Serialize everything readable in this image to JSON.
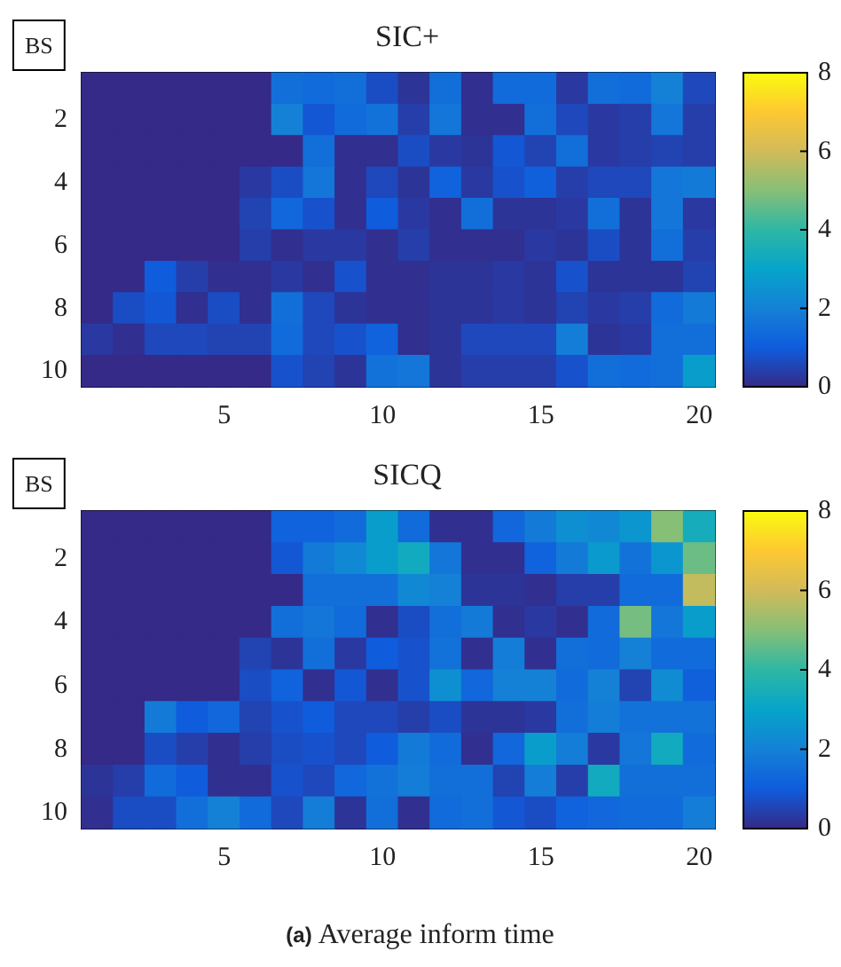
{
  "chart_data": [
    {
      "type": "heatmap",
      "title": "SIC+",
      "annotations": [
        "BS"
      ],
      "categories": [
        null,
        null,
        null,
        null,
        "5",
        null,
        null,
        null,
        null,
        "10",
        null,
        null,
        null,
        null,
        "15",
        null,
        null,
        null,
        null,
        "20"
      ],
      "y_categories": [
        null,
        "2",
        null,
        "4",
        null,
        "6",
        null,
        "8",
        null,
        "10"
      ],
      "clim": [
        0,
        8
      ],
      "cticks": [
        0,
        2,
        4,
        6,
        8
      ],
      "cells": [
        [
          0,
          0,
          0,
          0,
          0,
          0,
          1.5,
          1.4,
          1.5,
          0.7,
          0.2,
          1.5,
          0.1,
          1.4,
          1.4,
          0.3,
          1.5,
          1.4,
          2.0,
          0.6
        ],
        [
          0,
          0,
          0,
          0,
          0,
          0,
          2.0,
          0.9,
          1.4,
          1.6,
          0.4,
          1.7,
          0.1,
          0.1,
          1.5,
          0.6,
          0.3,
          0.4,
          1.7,
          0.4
        ],
        [
          0,
          0,
          0,
          0,
          0,
          0,
          0,
          1.5,
          0.1,
          0.1,
          0.7,
          0.3,
          0.2,
          0.9,
          0.5,
          1.5,
          0.3,
          0.4,
          0.5,
          0.4
        ],
        [
          0,
          0,
          0,
          0,
          0,
          0.3,
          0.7,
          1.7,
          0.1,
          0.6,
          0.2,
          1.2,
          0.3,
          0.8,
          1.1,
          0.4,
          0.6,
          0.6,
          1.7,
          1.8
        ],
        [
          0,
          0,
          0,
          0,
          0,
          0.5,
          1.3,
          0.8,
          0.1,
          1.0,
          0.3,
          0.1,
          1.5,
          0.2,
          0.2,
          0.3,
          1.5,
          0.2,
          1.7,
          0.3
        ],
        [
          0,
          0,
          0,
          0,
          0,
          0.4,
          0.1,
          0.3,
          0.3,
          0.1,
          0.4,
          0.1,
          0.1,
          0.1,
          0.3,
          0.2,
          0.7,
          0.2,
          1.5,
          0.4
        ],
        [
          0,
          0,
          1.0,
          0.4,
          0.1,
          0.1,
          0.3,
          0.1,
          0.8,
          0.1,
          0.1,
          0.2,
          0.2,
          0.3,
          0.2,
          0.8,
          0.2,
          0.2,
          0.2,
          0.5
        ],
        [
          0,
          0.7,
          0.9,
          0.1,
          0.7,
          0.1,
          1.5,
          0.6,
          0.2,
          0.1,
          0.1,
          0.2,
          0.2,
          0.3,
          0.2,
          0.5,
          0.3,
          0.4,
          1.4,
          1.8
        ],
        [
          0.3,
          0.1,
          0.6,
          0.6,
          0.5,
          0.5,
          1.4,
          0.6,
          0.8,
          1.2,
          0.1,
          0.2,
          0.6,
          0.6,
          0.6,
          1.9,
          0.2,
          0.3,
          1.5,
          1.5
        ],
        [
          0,
          0,
          0,
          0,
          0,
          0,
          0.8,
          0.5,
          0.2,
          1.6,
          1.7,
          0.2,
          0.4,
          0.4,
          0.4,
          0.8,
          1.5,
          1.4,
          1.5,
          2.8
        ]
      ]
    },
    {
      "type": "heatmap",
      "title": "SICQ",
      "annotations": [
        "BS",
        "(a) Average inform time"
      ],
      "categories": [
        null,
        null,
        null,
        null,
        "5",
        null,
        null,
        null,
        null,
        "10",
        null,
        null,
        null,
        null,
        "15",
        null,
        null,
        null,
        null,
        "20"
      ],
      "y_categories": [
        null,
        "2",
        null,
        "4",
        null,
        "6",
        null,
        "8",
        null,
        "10"
      ],
      "clim": [
        0,
        8
      ],
      "cticks": [
        0,
        2,
        4,
        6,
        8
      ],
      "cells": [
        [
          0,
          0,
          0,
          0,
          0,
          0,
          1.2,
          1.2,
          1.4,
          2.8,
          1.4,
          0.1,
          0.1,
          1.3,
          1.8,
          2.4,
          2.2,
          2.6,
          5.0,
          3.4
        ],
        [
          0,
          0,
          0,
          0,
          0,
          0,
          0.9,
          1.8,
          2.2,
          2.8,
          3.3,
          1.7,
          0.1,
          0.1,
          1.2,
          1.8,
          2.7,
          1.6,
          2.6,
          4.7
        ],
        [
          0,
          0,
          0,
          0,
          0,
          0,
          0,
          1.5,
          1.5,
          1.5,
          2.2,
          2.0,
          0.2,
          0.2,
          0.1,
          0.4,
          0.4,
          1.4,
          1.4,
          5.8
        ],
        [
          0,
          0,
          0,
          0,
          0,
          0,
          1.5,
          1.7,
          1.4,
          0.1,
          0.7,
          1.5,
          1.8,
          0.1,
          0.3,
          0.1,
          1.4,
          4.8,
          1.7,
          2.8
        ],
        [
          0,
          0,
          0,
          0,
          0,
          0.5,
          0.2,
          1.5,
          0.3,
          1.0,
          0.8,
          1.6,
          0.1,
          1.9,
          0.1,
          1.5,
          1.4,
          2.0,
          1.4,
          1.4
        ],
        [
          0,
          0,
          0,
          0,
          0,
          0.7,
          1.2,
          0.1,
          0.9,
          0.1,
          0.8,
          2.4,
          1.3,
          2.0,
          2.0,
          1.4,
          2.0,
          0.5,
          2.3,
          1.1
        ],
        [
          0,
          0,
          1.8,
          1.0,
          1.3,
          0.5,
          0.8,
          1.0,
          0.6,
          0.6,
          0.4,
          0.7,
          0.2,
          0.2,
          0.3,
          1.5,
          1.9,
          1.6,
          1.6,
          1.6
        ],
        [
          0,
          0,
          0.7,
          0.4,
          0.1,
          0.4,
          0.7,
          0.8,
          0.6,
          1.0,
          1.8,
          1.4,
          0.1,
          1.3,
          2.8,
          1.9,
          0.3,
          1.7,
          3.3,
          1.4
        ],
        [
          0.2,
          0.4,
          1.4,
          1.0,
          0.1,
          0.1,
          0.8,
          0.6,
          1.3,
          1.6,
          1.9,
          1.5,
          1.5,
          0.5,
          1.9,
          0.4,
          3.3,
          1.5,
          1.5,
          1.5
        ],
        [
          0.1,
          0.7,
          0.7,
          1.5,
          2.0,
          1.4,
          0.6,
          1.9,
          0.2,
          1.5,
          0.1,
          1.4,
          1.5,
          0.9,
          0.7,
          1.2,
          1.3,
          1.4,
          1.4,
          1.9
        ]
      ]
    }
  ]
}
